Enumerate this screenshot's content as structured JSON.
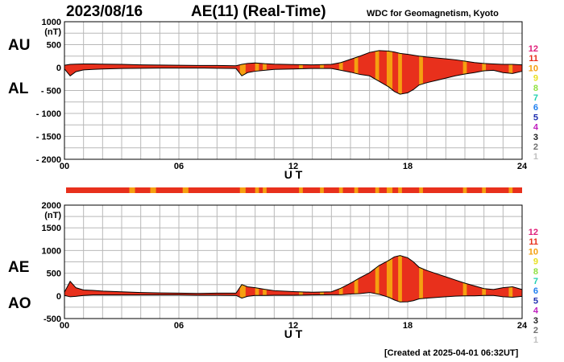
{
  "header": {
    "date": "2023/08/16",
    "title": "AE(11) (Real-Time)",
    "source": "WDC for Geomagnetism, Kyoto",
    "created": "[Created at 2025-04-01 06:32UT]"
  },
  "colors": {
    "fill_main": "#e8301c",
    "fill_alt": "#f5a010",
    "grid": "#b8b8b8",
    "bar_start": "#e8301c"
  },
  "station_scale": {
    "labels": [
      "12",
      "11",
      "10",
      "9",
      "8",
      "7",
      "6",
      "5",
      "4",
      "3",
      "2",
      "1"
    ],
    "colors": [
      "#e0207a",
      "#e8301c",
      "#f5a010",
      "#e8e020",
      "#90e040",
      "#20d0b0",
      "#2080f0",
      "#2030b0",
      "#c020c0",
      "#202020",
      "#707070",
      "#c0c0c0"
    ]
  },
  "chart_data": [
    {
      "type": "area",
      "name": "AU/AL",
      "panel_labels": [
        "AU",
        "AL"
      ],
      "y_unit": "(nT)",
      "xlabel": "U T",
      "ylim": [
        -2000,
        1000
      ],
      "yticks": [
        1000,
        500,
        0,
        -500,
        -1000,
        -1500,
        -2000
      ],
      "ytick_labels": [
        "1000",
        "500",
        "0",
        "- 500",
        "- 1000",
        "- 1500",
        "- 2000"
      ],
      "xlim": [
        0,
        24
      ],
      "xticks": [
        0,
        6,
        12,
        18,
        24
      ],
      "xtick_labels": [
        "00",
        "06",
        "12",
        "18",
        "24"
      ],
      "x": [
        0,
        0.3,
        0.6,
        1,
        1.5,
        2,
        3,
        4,
        5,
        6,
        7,
        8,
        9,
        9.3,
        9.6,
        10,
        10.5,
        11,
        12,
        13,
        14,
        14.5,
        15,
        15.5,
        16,
        16.5,
        17,
        17.3,
        17.6,
        18,
        18.3,
        18.6,
        19,
        19.5,
        20,
        20.5,
        21,
        21.5,
        22,
        22.5,
        23,
        23.5,
        24
      ],
      "series": [
        {
          "name": "AU",
          "values": [
            50,
            70,
            75,
            80,
            80,
            75,
            70,
            60,
            55,
            50,
            45,
            45,
            40,
            70,
            90,
            100,
            85,
            75,
            65,
            60,
            70,
            110,
            180,
            250,
            330,
            370,
            360,
            340,
            310,
            290,
            270,
            250,
            230,
            210,
            190,
            170,
            140,
            110,
            90,
            80,
            70,
            70,
            60
          ]
        },
        {
          "name": "AL",
          "values": [
            -30,
            -180,
            -90,
            -50,
            -40,
            -30,
            -20,
            -15,
            -10,
            -10,
            -10,
            -15,
            -20,
            -180,
            -110,
            -80,
            -60,
            -40,
            -30,
            -20,
            -20,
            -60,
            -100,
            -150,
            -180,
            -300,
            -420,
            -520,
            -580,
            -550,
            -480,
            -380,
            -330,
            -280,
            -230,
            -180,
            -140,
            -110,
            -70,
            -60,
            -110,
            -130,
            -80
          ]
        }
      ]
    },
    {
      "type": "area",
      "name": "AE/AO",
      "panel_labels": [
        "AE",
        "AO"
      ],
      "y_unit": "(nT)",
      "xlabel": "U T",
      "ylim": [
        -500,
        2000
      ],
      "yticks": [
        2000,
        1500,
        1000,
        500,
        0,
        -500
      ],
      "ytick_labels": [
        "2000",
        "1500",
        "1000",
        "500",
        "0",
        "-500"
      ],
      "xlim": [
        0,
        24
      ],
      "xticks": [
        0,
        6,
        12,
        18,
        24
      ],
      "xtick_labels": [
        "00",
        "06",
        "12",
        "18",
        "24"
      ],
      "x": [
        0,
        0.3,
        0.6,
        1,
        1.5,
        2,
        3,
        4,
        5,
        6,
        7,
        8,
        9,
        9.3,
        9.6,
        10,
        10.5,
        11,
        12,
        13,
        14,
        14.5,
        15,
        15.5,
        16,
        16.5,
        17,
        17.3,
        17.6,
        18,
        18.3,
        18.6,
        19,
        19.5,
        20,
        20.5,
        21,
        21.5,
        22,
        22.5,
        23,
        23.5,
        24
      ],
      "series": [
        {
          "name": "AE",
          "values": [
            80,
            320,
            180,
            130,
            120,
            105,
            90,
            75,
            65,
            60,
            55,
            60,
            60,
            250,
            200,
            180,
            145,
            115,
            95,
            80,
            90,
            170,
            280,
            400,
            510,
            670,
            780,
            860,
            890,
            840,
            750,
            630,
            560,
            490,
            420,
            350,
            280,
            220,
            160,
            140,
            180,
            200,
            140
          ]
        },
        {
          "name": "AO",
          "values": [
            10,
            -20,
            -10,
            10,
            20,
            20,
            20,
            20,
            20,
            20,
            15,
            15,
            10,
            -50,
            -10,
            10,
            10,
            15,
            15,
            20,
            25,
            25,
            40,
            50,
            75,
            35,
            -30,
            -90,
            -135,
            -130,
            -105,
            -65,
            -50,
            -35,
            -20,
            -5,
            0,
            0,
            10,
            10,
            -20,
            -30,
            -10
          ]
        }
      ]
    },
    {
      "type": "bar",
      "name": "station-count",
      "xlim": [
        0,
        24
      ],
      "highlight_intervals": [
        [
          3.4,
          3.7
        ],
        [
          4.5,
          4.8
        ],
        [
          6.2,
          6.5
        ],
        [
          9.2,
          9.5
        ],
        [
          10,
          10.2
        ],
        [
          10.4,
          10.6
        ],
        [
          12.3,
          12.5
        ],
        [
          13.4,
          13.6
        ],
        [
          14.4,
          14.6
        ],
        [
          15.2,
          15.4
        ],
        [
          16.3,
          16.5
        ],
        [
          16.9,
          17.2
        ],
        [
          17.5,
          17.7
        ],
        [
          18.6,
          18.8
        ],
        [
          20.9,
          21.1
        ],
        [
          21.9,
          22.1
        ],
        [
          23.3,
          23.5
        ]
      ]
    }
  ],
  "alt_intervals": [
    [
      9.2,
      9.5
    ],
    [
      10,
      10.2
    ],
    [
      10.4,
      10.6
    ],
    [
      12.3,
      12.5
    ],
    [
      13.4,
      13.6
    ],
    [
      14.4,
      14.6
    ],
    [
      15.2,
      15.4
    ],
    [
      16.3,
      16.5
    ],
    [
      16.9,
      17.2
    ],
    [
      17.5,
      17.7
    ],
    [
      18.6,
      18.8
    ],
    [
      20.9,
      21.1
    ],
    [
      21.9,
      22.1
    ],
    [
      23.3,
      23.5
    ]
  ]
}
